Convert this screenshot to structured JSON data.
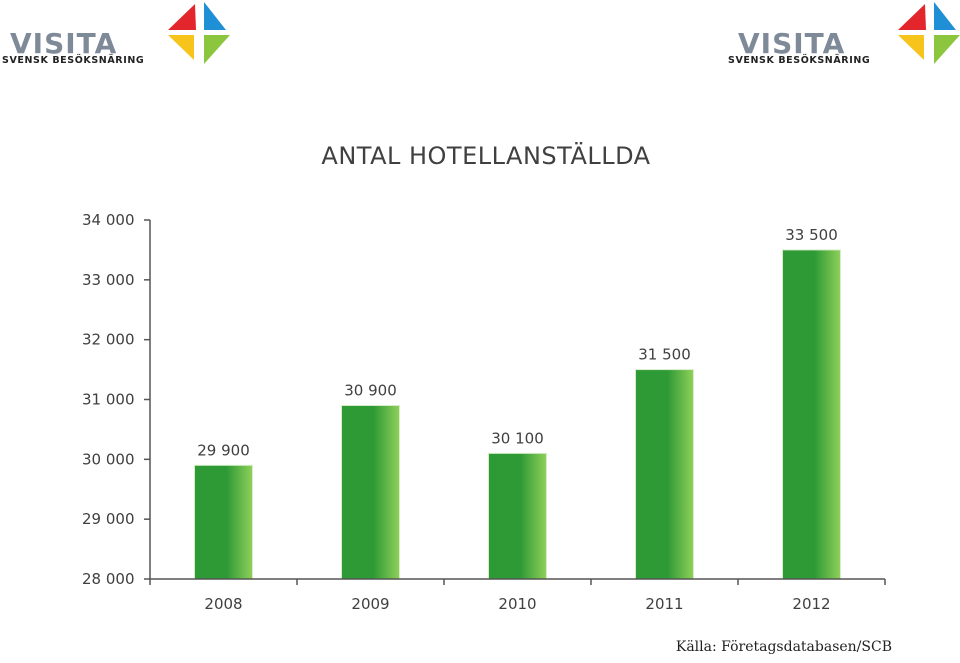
{
  "logos": {
    "wordmark": "VISITA",
    "tagline": "SVENSK BESÖKSNÄRING",
    "colors": {
      "red": "#e2262b",
      "blue": "#1f8fd6",
      "yellow": "#f7c41b",
      "green": "#8cc63f",
      "gray": "#7f8a99"
    }
  },
  "source_note": "Källa: Företagsdatabasen/SCB",
  "chart_data": {
    "type": "bar",
    "title": "ANTAL HOTELLANSTÄLLDA",
    "xlabel": "",
    "ylabel": "",
    "categories": [
      "2008",
      "2009",
      "2010",
      "2011",
      "2012"
    ],
    "values": [
      29900,
      30900,
      30100,
      31500,
      33500
    ],
    "value_labels": [
      "29 900",
      "30 900",
      "30 100",
      "31 500",
      "33 500"
    ],
    "ylim": [
      28000,
      34000
    ],
    "y_ticks": [
      28000,
      29000,
      30000,
      31000,
      32000,
      33000,
      34000
    ],
    "y_tick_labels": [
      "28 000",
      "29 000",
      "30 000",
      "31 000",
      "32 000",
      "33 000",
      "34 000"
    ],
    "grid": false,
    "colors": {
      "bar_dark": "#2e9a35",
      "bar_light": "#8fd05a",
      "axis": "#555555",
      "text": "#404040"
    }
  }
}
